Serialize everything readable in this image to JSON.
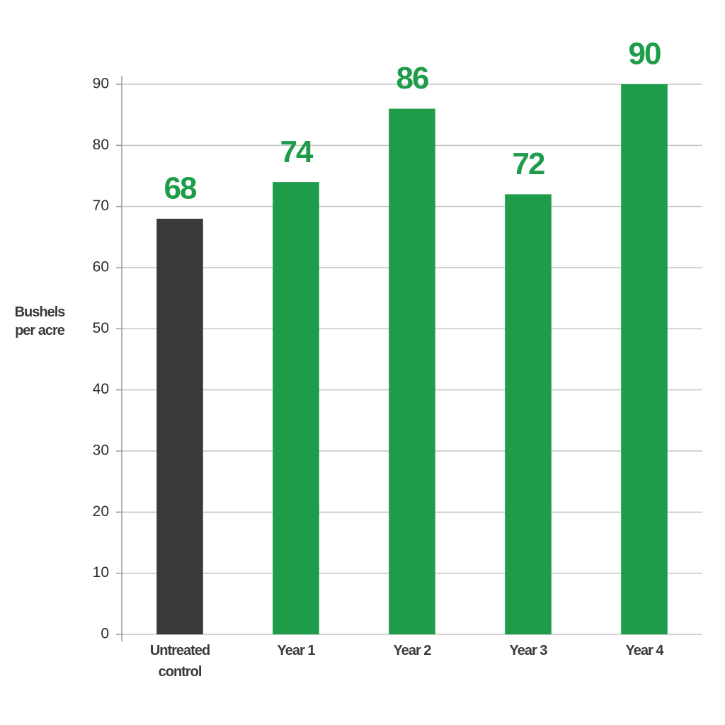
{
  "chart_data": {
    "type": "bar",
    "ylabel": "Bushels per acre",
    "categories": [
      "Untreated control",
      "Year 1",
      "Year 2",
      "Year 3",
      "Year 4"
    ],
    "values": [
      68,
      74,
      86,
      72,
      90
    ],
    "colors": [
      "#3a3a3c",
      "#1e9c4a",
      "#1e9c4a",
      "#1e9c4a",
      "#1e9c4a"
    ],
    "value_label_color": "#1e9c4a",
    "ylim": [
      0,
      90
    ],
    "yticks": [
      0,
      10,
      20,
      30,
      40,
      50,
      60,
      70,
      80,
      90
    ],
    "grid": true
  }
}
